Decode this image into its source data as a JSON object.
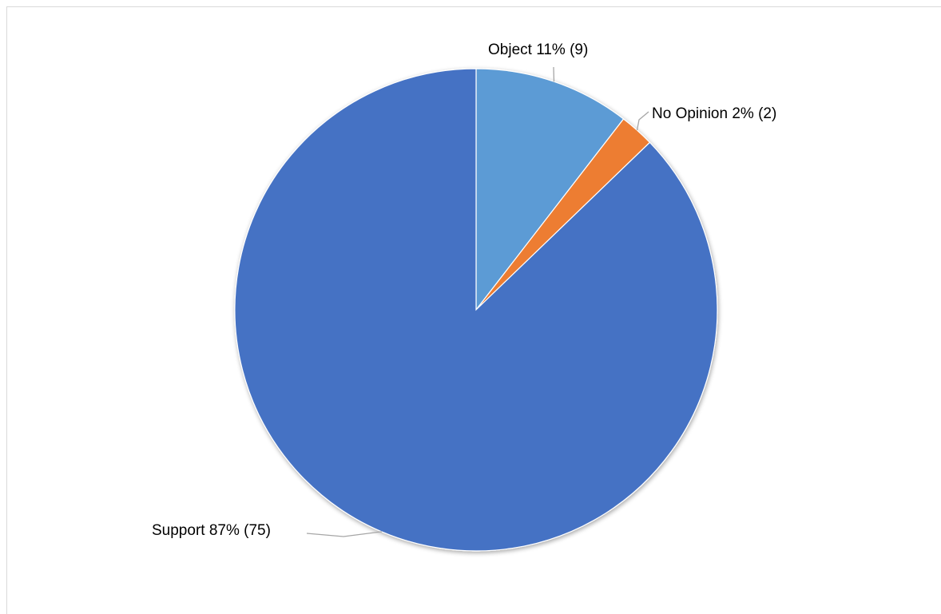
{
  "chart_data": {
    "type": "pie",
    "title": "",
    "start_angle_deg": 0,
    "direction": "clockwise",
    "legend": "none",
    "slices": [
      {
        "label": "Object",
        "value": 9,
        "percent": "11%",
        "color": "#5B9BD5",
        "label_text": "Object 11% (9)"
      },
      {
        "label": "No Opinion",
        "value": 2,
        "percent": "2%",
        "color": "#ED7D31",
        "label_text": "No Opinion 2% (2)"
      },
      {
        "label": "Support",
        "value": 75,
        "percent": "87%",
        "color": "#4472C4",
        "label_text": "Support 87% (75)"
      }
    ],
    "border_color": "#FFFFFF",
    "leader_line_color": "#A6A6A6"
  }
}
